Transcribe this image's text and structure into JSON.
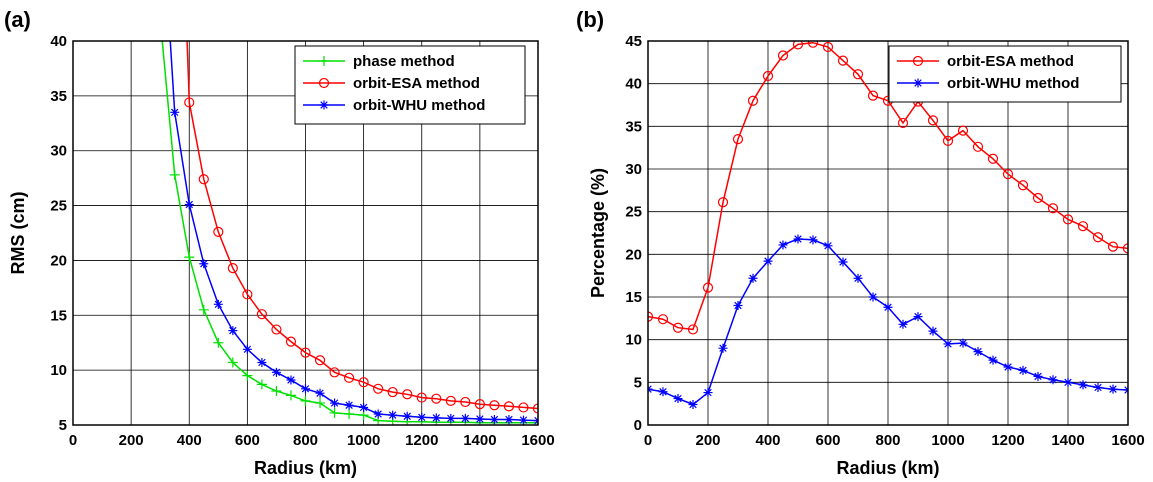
{
  "chart_data": [
    {
      "type": "line",
      "panel_label": "(a)",
      "xlabel": "Radius (km)",
      "ylabel": "RMS (cm)",
      "xlim": [
        0,
        1600
      ],
      "ylim": [
        5,
        40
      ],
      "xticks": [
        0,
        200,
        400,
        600,
        800,
        1000,
        1200,
        1400,
        1600
      ],
      "yticks": [
        5,
        10,
        15,
        20,
        25,
        30,
        35,
        40
      ],
      "grid": true,
      "legend_position": "top-right",
      "series": [
        {
          "name": "phase method",
          "color": "#00e000",
          "marker": "plus",
          "x": [
            300,
            350,
            400,
            450,
            500,
            550,
            600,
            650,
            700,
            750,
            800,
            850,
            900,
            950,
            1000,
            1050,
            1100,
            1150,
            1200,
            1250,
            1300,
            1350,
            1400,
            1450,
            1500,
            1550,
            1600
          ],
          "y": [
            42,
            27.8,
            20.3,
            15.5,
            12.5,
            10.7,
            9.5,
            8.7,
            8.1,
            7.7,
            7.2,
            7.0,
            6.1,
            6.0,
            5.9,
            5.4,
            5.35,
            5.3,
            5.3,
            5.25,
            5.25,
            5.25,
            5.2,
            5.2,
            5.2,
            5.2,
            5.2
          ]
        },
        {
          "name": "orbit-ESA method",
          "color": "#ff0000",
          "marker": "circle",
          "x": [
            390,
            400,
            450,
            500,
            550,
            600,
            650,
            700,
            750,
            800,
            850,
            900,
            950,
            1000,
            1050,
            1100,
            1150,
            1200,
            1250,
            1300,
            1350,
            1400,
            1450,
            1500,
            1550,
            1600
          ],
          "y": [
            42,
            34.4,
            27.4,
            22.6,
            19.3,
            16.9,
            15.1,
            13.7,
            12.6,
            11.6,
            10.9,
            9.8,
            9.3,
            8.9,
            8.3,
            8.0,
            7.8,
            7.5,
            7.4,
            7.2,
            7.1,
            6.9,
            6.8,
            6.7,
            6.6,
            6.5
          ]
        },
        {
          "name": "orbit-WHU method",
          "color": "#0000ff",
          "marker": "asterisk",
          "x": [
            330,
            350,
            400,
            450,
            500,
            550,
            600,
            650,
            700,
            750,
            800,
            850,
            900,
            950,
            1000,
            1050,
            1100,
            1150,
            1200,
            1250,
            1300,
            1350,
            1400,
            1450,
            1500,
            1550,
            1600
          ],
          "y": [
            42,
            33.5,
            25.1,
            19.7,
            16.0,
            13.6,
            11.9,
            10.7,
            9.8,
            9.1,
            8.3,
            7.9,
            7.0,
            6.8,
            6.6,
            6.0,
            5.9,
            5.8,
            5.7,
            5.65,
            5.6,
            5.6,
            5.55,
            5.5,
            5.5,
            5.45,
            5.4
          ]
        }
      ]
    },
    {
      "type": "line",
      "panel_label": "(b)",
      "xlabel": "Radius (km)",
      "ylabel": "Percentage (%)",
      "xlim": [
        0,
        1600
      ],
      "ylim": [
        0,
        45
      ],
      "xticks": [
        0,
        200,
        400,
        600,
        800,
        1000,
        1200,
        1400,
        1600
      ],
      "yticks": [
        0,
        5,
        10,
        15,
        20,
        25,
        30,
        35,
        40,
        45
      ],
      "grid": true,
      "legend_position": "top-right",
      "series": [
        {
          "name": "orbit-ESA method",
          "color": "#ff0000",
          "marker": "circle",
          "x": [
            0,
            50,
            100,
            150,
            200,
            250,
            300,
            350,
            400,
            450,
            500,
            550,
            600,
            650,
            700,
            750,
            800,
            850,
            900,
            950,
            1000,
            1050,
            1100,
            1150,
            1200,
            1250,
            1300,
            1350,
            1400,
            1450,
            1500,
            1550,
            1600
          ],
          "y": [
            12.7,
            12.4,
            11.4,
            11.2,
            16.1,
            26.1,
            33.5,
            38.0,
            40.9,
            43.3,
            44.6,
            44.8,
            44.3,
            42.7,
            41.1,
            38.6,
            38.0,
            35.4,
            37.9,
            35.7,
            33.3,
            34.5,
            32.6,
            31.2,
            29.4,
            28.1,
            26.6,
            25.4,
            24.1,
            23.3,
            22.0,
            20.9,
            20.7
          ]
        },
        {
          "name": "orbit-WHU method",
          "color": "#0000ff",
          "marker": "asterisk",
          "x": [
            0,
            50,
            100,
            150,
            200,
            250,
            300,
            350,
            400,
            450,
            500,
            550,
            600,
            650,
            700,
            750,
            800,
            850,
            900,
            950,
            1000,
            1050,
            1100,
            1150,
            1200,
            1250,
            1300,
            1350,
            1400,
            1450,
            1500,
            1550,
            1600
          ],
          "y": [
            4.2,
            3.9,
            3.1,
            2.4,
            3.8,
            9.0,
            14.0,
            17.2,
            19.2,
            21.1,
            21.8,
            21.7,
            21.0,
            19.1,
            17.2,
            15.0,
            13.8,
            11.8,
            12.7,
            11.0,
            9.5,
            9.6,
            8.6,
            7.6,
            6.8,
            6.4,
            5.7,
            5.3,
            5.0,
            4.7,
            4.4,
            4.2,
            4.1
          ]
        }
      ]
    }
  ]
}
